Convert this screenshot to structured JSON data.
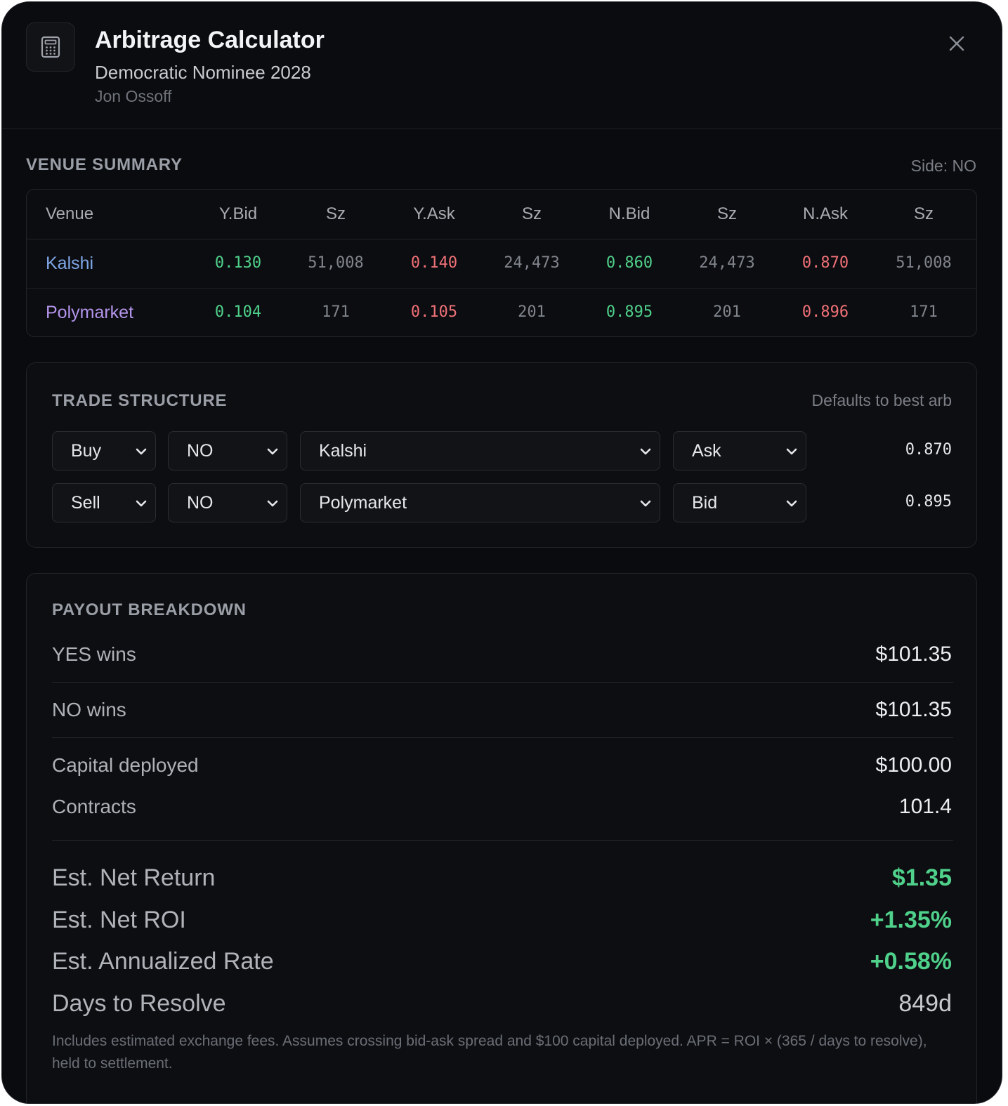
{
  "header": {
    "title": "Arbitrage Calculator",
    "subtitle": "Democratic Nominee 2028",
    "candidate": "Jon Ossoff",
    "icon": "calculator-icon",
    "close_icon": "close-icon"
  },
  "venue_summary": {
    "label": "VENUE SUMMARY",
    "side": "Side: NO",
    "columns": [
      "Venue",
      "Y.Bid",
      "Sz",
      "Y.Ask",
      "Sz",
      "N.Bid",
      "Sz",
      "N.Ask",
      "Sz"
    ],
    "rows": [
      {
        "venue": "Kalshi",
        "y_bid": "0.130",
        "y_bid_sz": "51,008",
        "y_ask": "0.140",
        "y_ask_sz": "24,473",
        "n_bid": "0.860",
        "n_bid_sz": "24,473",
        "n_ask": "0.870",
        "n_ask_sz": "51,008"
      },
      {
        "venue": "Polymarket",
        "y_bid": "0.104",
        "y_bid_sz": "171",
        "y_ask": "0.105",
        "y_ask_sz": "201",
        "n_bid": "0.895",
        "n_bid_sz": "201",
        "n_ask": "0.896",
        "n_ask_sz": "171"
      }
    ],
    "colors": {
      "kalshi": "#7fa6e8",
      "polymarket": "#b394ea",
      "bid": "#4fd18b",
      "ask": "#f07178"
    }
  },
  "trade_structure": {
    "label": "TRADE STRUCTURE",
    "note": "Defaults to best arb",
    "legs": [
      {
        "action": "Buy",
        "side": "NO",
        "venue": "Kalshi",
        "price_type": "Ask",
        "price": "0.870"
      },
      {
        "action": "Sell",
        "side": "NO",
        "venue": "Polymarket",
        "price_type": "Bid",
        "price": "0.895"
      }
    ]
  },
  "payout": {
    "label": "PAYOUT BREAKDOWN",
    "yes_wins_label": "YES wins",
    "yes_wins": "$101.35",
    "no_wins_label": "NO wins",
    "no_wins": "$101.35",
    "capital_label": "Capital deployed",
    "capital": "$100.00",
    "contracts_label": "Contracts",
    "contracts": "101.4",
    "net_return_label": "Est. Net Return",
    "net_return": "$1.35",
    "net_roi_label": "Est. Net ROI",
    "net_roi": "+1.35%",
    "annualized_label": "Est. Annualized Rate",
    "annualized": "+0.58%",
    "days_label": "Days to Resolve",
    "days": "849d",
    "footnote": "Includes estimated exchange fees. Assumes crossing bid-ask spread and $100 capital deployed. APR = ROI × (365 / days to resolve), held to settlement.",
    "positive_color": "#4fd18b"
  }
}
